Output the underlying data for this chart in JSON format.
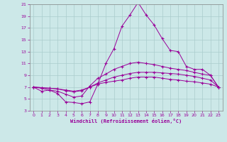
{
  "xlabel": "Windchill (Refroidissement éolien,°C)",
  "background_color": "#cce8e8",
  "grid_color": "#aacccc",
  "line_color": "#990099",
  "xlim": [
    -0.5,
    23.5
  ],
  "ylim": [
    3,
    21
  ],
  "yticks": [
    3,
    5,
    7,
    9,
    11,
    13,
    15,
    17,
    19,
    21
  ],
  "xticks": [
    0,
    1,
    2,
    3,
    4,
    5,
    6,
    7,
    8,
    9,
    10,
    11,
    12,
    13,
    14,
    15,
    16,
    17,
    18,
    19,
    20,
    21,
    22,
    23
  ],
  "line1_x": [
    0,
    1,
    2,
    3,
    4,
    5,
    6,
    7,
    8,
    9,
    10,
    11,
    12,
    13,
    14,
    15,
    16,
    17,
    18,
    19,
    20,
    21,
    22,
    23
  ],
  "line1_y": [
    7.0,
    6.3,
    6.5,
    5.9,
    4.5,
    4.4,
    4.2,
    4.5,
    7.5,
    11.0,
    13.5,
    17.3,
    19.2,
    21.3,
    19.2,
    17.5,
    15.2,
    13.2,
    13.0,
    10.5,
    10.0,
    10.0,
    9.0,
    7.0
  ],
  "line2_x": [
    0,
    1,
    2,
    3,
    4,
    5,
    6,
    7,
    8,
    9,
    10,
    11,
    12,
    13,
    14,
    15,
    16,
    17,
    18,
    19,
    20,
    21,
    22,
    23
  ],
  "line2_y": [
    7.0,
    6.8,
    6.5,
    6.3,
    5.8,
    5.3,
    5.5,
    7.2,
    8.5,
    9.2,
    10.0,
    10.5,
    11.0,
    11.2,
    11.0,
    10.8,
    10.5,
    10.2,
    10.0,
    9.8,
    9.5,
    9.2,
    9.0,
    7.0
  ],
  "line3_x": [
    0,
    1,
    2,
    3,
    4,
    5,
    6,
    7,
    8,
    9,
    10,
    11,
    12,
    13,
    14,
    15,
    16,
    17,
    18,
    19,
    20,
    21,
    22,
    23
  ],
  "line3_y": [
    7.0,
    6.9,
    6.8,
    6.7,
    6.4,
    6.2,
    6.4,
    7.0,
    7.7,
    8.2,
    8.7,
    9.0,
    9.3,
    9.5,
    9.5,
    9.5,
    9.4,
    9.3,
    9.2,
    9.0,
    8.8,
    8.5,
    8.2,
    7.0
  ],
  "line4_x": [
    0,
    1,
    2,
    3,
    4,
    5,
    6,
    7,
    8,
    9,
    10,
    11,
    12,
    13,
    14,
    15,
    16,
    17,
    18,
    19,
    20,
    21,
    22,
    23
  ],
  "line4_y": [
    7.0,
    6.9,
    6.8,
    6.7,
    6.5,
    6.3,
    6.5,
    7.0,
    7.5,
    7.8,
    8.0,
    8.2,
    8.5,
    8.7,
    8.7,
    8.7,
    8.5,
    8.3,
    8.2,
    8.0,
    7.9,
    7.7,
    7.5,
    7.0
  ]
}
